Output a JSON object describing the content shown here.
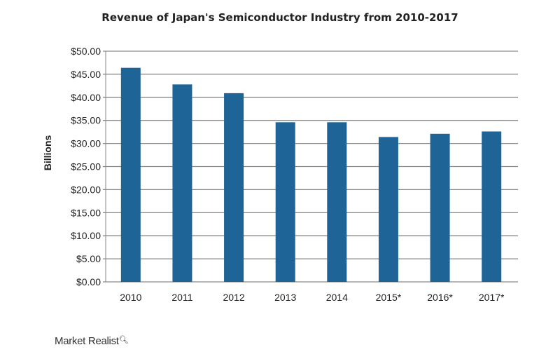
{
  "chart_data": {
    "type": "bar",
    "title": "Revenue of Japan's Semiconductor Industry from 2010-2017",
    "xlabel": "",
    "ylabel": "Billions",
    "categories": [
      "2010",
      "2011",
      "2012",
      "2013",
      "2014",
      "2015*",
      "2016*",
      "2017*"
    ],
    "values": [
      46.4,
      42.8,
      40.9,
      34.6,
      34.6,
      31.4,
      32.1,
      32.6
    ],
    "ylim": [
      0,
      50
    ],
    "yticks": [
      0,
      5,
      10,
      15,
      20,
      25,
      30,
      35,
      40,
      45,
      50
    ],
    "ytick_labels": [
      "$0.00",
      "$5.00",
      "$10.00",
      "$15.00",
      "$20.00",
      "$25.00",
      "$30.00",
      "$35.00",
      "$40.00",
      "$45.00",
      "$50.00"
    ],
    "grid": true,
    "bar_color": "#1f6496"
  },
  "source": {
    "logo": "Market Realist"
  }
}
